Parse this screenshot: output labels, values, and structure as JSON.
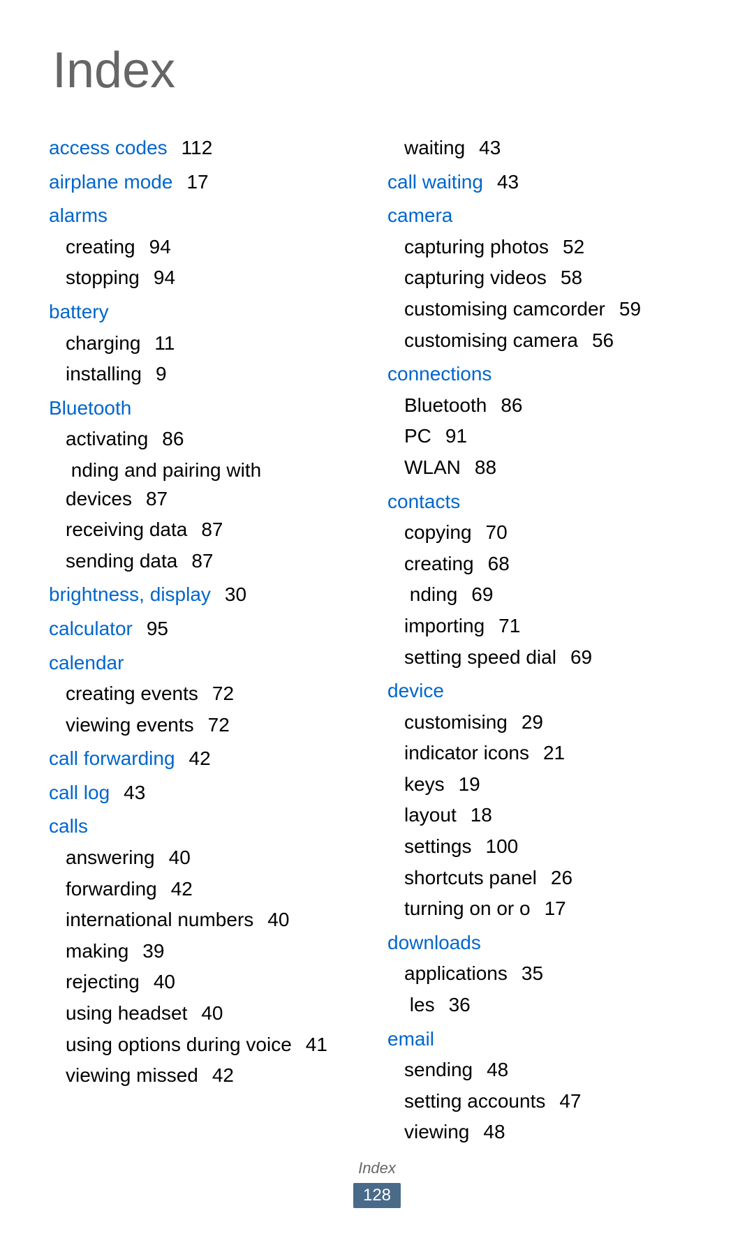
{
  "title": "Index",
  "footer_label": "Index",
  "page_number": "128",
  "colors": {
    "link": "#0066cc",
    "text": "#000000",
    "title": "#666666",
    "page_badge_bg": "#4a6a8a",
    "page_badge_text": "#ffffff"
  },
  "left_column": [
    {
      "type": "main",
      "label": "access codes",
      "page": "112"
    },
    {
      "type": "main",
      "label": "airplane mode",
      "page": "17"
    },
    {
      "type": "main",
      "label": "alarms",
      "page": ""
    },
    {
      "type": "sub",
      "label": "creating",
      "page": "94"
    },
    {
      "type": "sub",
      "label": "stopping",
      "page": "94"
    },
    {
      "type": "main",
      "label": "battery",
      "page": ""
    },
    {
      "type": "sub",
      "label": "charging",
      "page": "11"
    },
    {
      "type": "sub",
      "label": "installing",
      "page": "9"
    },
    {
      "type": "main",
      "label": "Bluetooth",
      "page": ""
    },
    {
      "type": "sub",
      "label": "activating",
      "page": "86"
    },
    {
      "type": "sub",
      "label": " nding and pairing with devices",
      "page": "87"
    },
    {
      "type": "sub",
      "label": "receiving data",
      "page": "87"
    },
    {
      "type": "sub",
      "label": "sending data",
      "page": "87"
    },
    {
      "type": "main",
      "label": "brightness, display",
      "page": "30"
    },
    {
      "type": "main",
      "label": "calculator",
      "page": "95"
    },
    {
      "type": "main",
      "label": "calendar",
      "page": ""
    },
    {
      "type": "sub",
      "label": "creating events",
      "page": "72"
    },
    {
      "type": "sub",
      "label": "viewing events",
      "page": "72"
    },
    {
      "type": "main",
      "label": "call forwarding",
      "page": "42"
    },
    {
      "type": "main",
      "label": "call log",
      "page": "43"
    },
    {
      "type": "main",
      "label": "calls",
      "page": ""
    },
    {
      "type": "sub",
      "label": "answering",
      "page": "40"
    },
    {
      "type": "sub",
      "label": "forwarding",
      "page": "42"
    },
    {
      "type": "sub",
      "label": "international numbers",
      "page": "40"
    },
    {
      "type": "sub",
      "label": "making",
      "page": "39"
    },
    {
      "type": "sub",
      "label": "rejecting",
      "page": "40"
    },
    {
      "type": "sub",
      "label": "using headset",
      "page": "40"
    },
    {
      "type": "sub",
      "label": "using options during voice",
      "page": "41"
    },
    {
      "type": "sub",
      "label": "viewing missed",
      "page": "42"
    }
  ],
  "right_column": [
    {
      "type": "sub",
      "label": "waiting",
      "page": "43"
    },
    {
      "type": "main",
      "label": "call waiting",
      "page": "43"
    },
    {
      "type": "main",
      "label": "camera",
      "page": ""
    },
    {
      "type": "sub",
      "label": "capturing photos",
      "page": "52"
    },
    {
      "type": "sub",
      "label": "capturing videos",
      "page": "58"
    },
    {
      "type": "sub",
      "label": "customising camcorder",
      "page": "59"
    },
    {
      "type": "sub",
      "label": "customising camera",
      "page": "56"
    },
    {
      "type": "main",
      "label": "connections",
      "page": ""
    },
    {
      "type": "sub",
      "label": "Bluetooth",
      "page": "86"
    },
    {
      "type": "sub",
      "label": "PC",
      "page": "91"
    },
    {
      "type": "sub",
      "label": "WLAN",
      "page": "88"
    },
    {
      "type": "main",
      "label": "contacts",
      "page": ""
    },
    {
      "type": "sub",
      "label": "copying",
      "page": "70"
    },
    {
      "type": "sub",
      "label": "creating",
      "page": "68"
    },
    {
      "type": "sub",
      "label": " nding",
      "page": "69"
    },
    {
      "type": "sub",
      "label": "importing",
      "page": "71"
    },
    {
      "type": "sub",
      "label": "setting speed dial",
      "page": "69"
    },
    {
      "type": "main",
      "label": "device",
      "page": ""
    },
    {
      "type": "sub",
      "label": "customising",
      "page": "29"
    },
    {
      "type": "sub",
      "label": "indicator icons",
      "page": "21"
    },
    {
      "type": "sub",
      "label": "keys",
      "page": "19"
    },
    {
      "type": "sub",
      "label": "layout",
      "page": "18"
    },
    {
      "type": "sub",
      "label": "settings",
      "page": "100"
    },
    {
      "type": "sub",
      "label": "shortcuts panel",
      "page": "26"
    },
    {
      "type": "sub",
      "label": "turning on or o",
      "page": "17"
    },
    {
      "type": "main",
      "label": "downloads",
      "page": ""
    },
    {
      "type": "sub",
      "label": "applications",
      "page": "35"
    },
    {
      "type": "sub",
      "label": " les",
      "page": "36"
    },
    {
      "type": "main",
      "label": "email",
      "page": ""
    },
    {
      "type": "sub",
      "label": "sending",
      "page": "48"
    },
    {
      "type": "sub",
      "label": "setting accounts",
      "page": "47"
    },
    {
      "type": "sub",
      "label": "viewing",
      "page": "48"
    }
  ]
}
